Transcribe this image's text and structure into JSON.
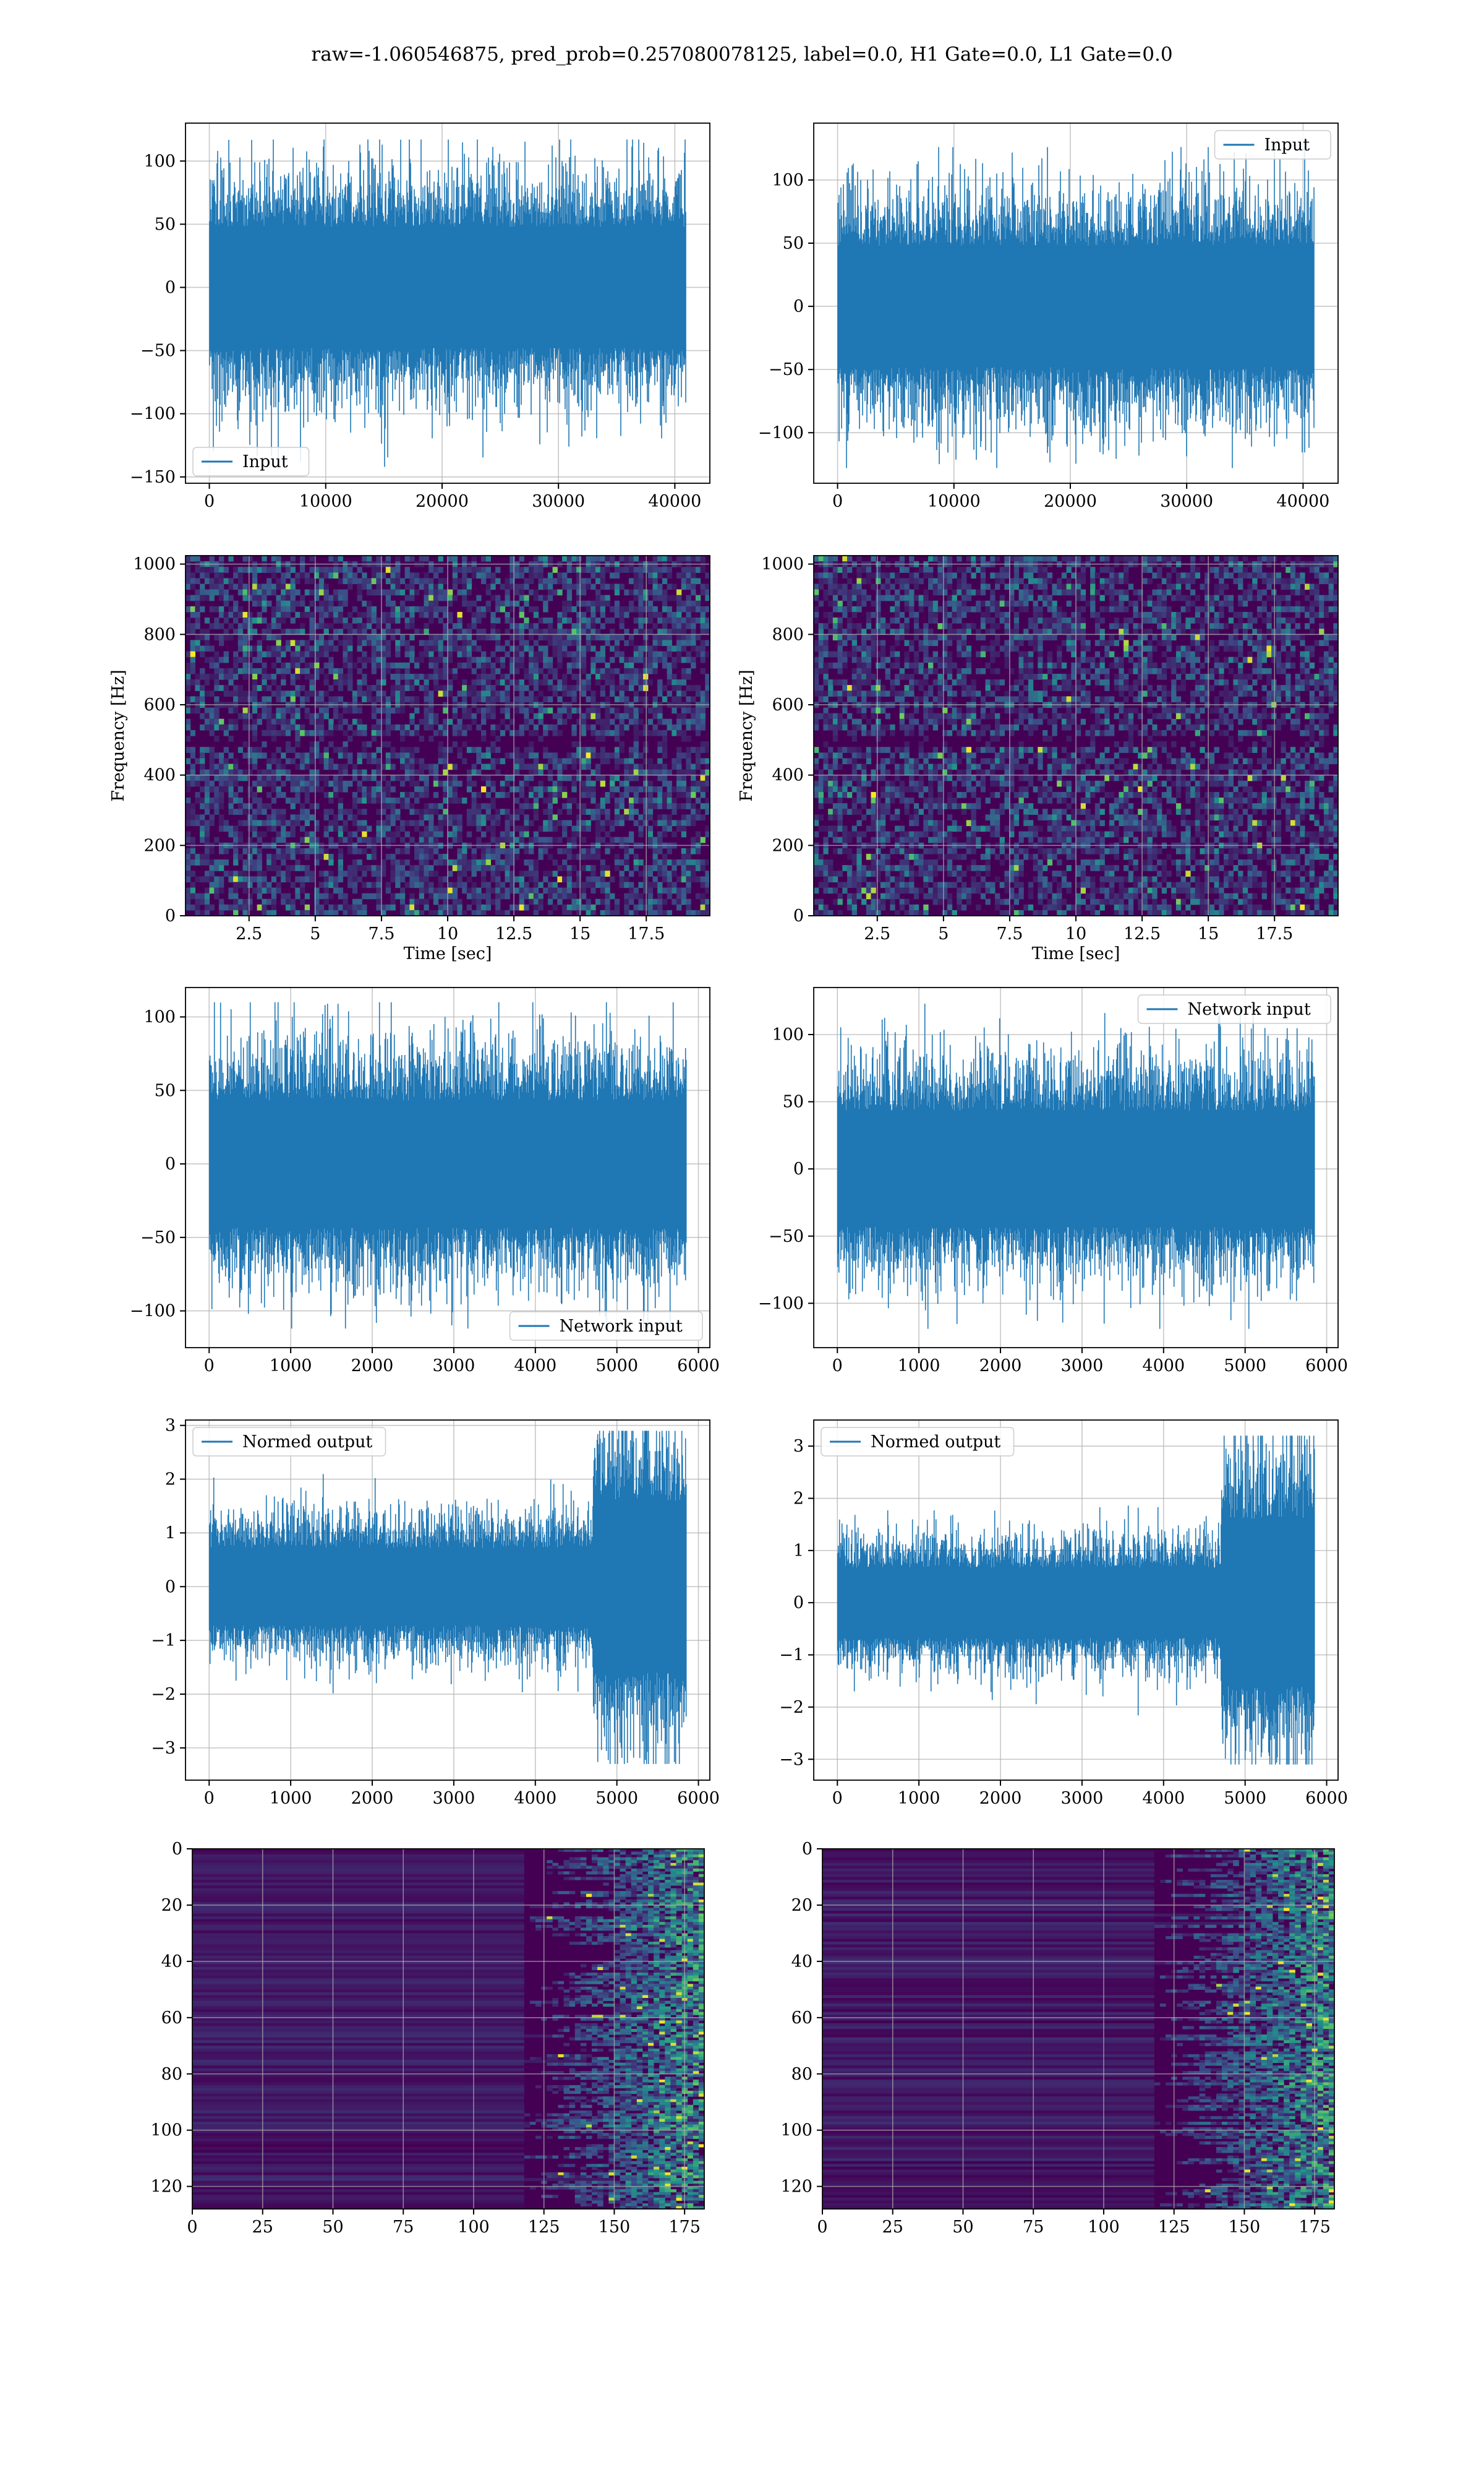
{
  "figure": {
    "suptitle": "raw=-1.060546875, pred_prob=0.257080078125, label=0.0, H1 Gate=0.0, L1 Gate=0.0"
  },
  "colors": {
    "line": "#1f77b4",
    "grid": "#b0b0b0",
    "viridis_dark": "#440154",
    "viridis_mid": "#3b528b",
    "viridis_green": "#21918c",
    "viridis_light": "#5ec962",
    "viridis_yellow": "#fde725"
  },
  "chart_data": [
    {
      "id": "h1-input",
      "type": "line",
      "grid": true,
      "legend": "lower-left",
      "series": [
        {
          "name": "Input",
          "n_samples": 40960,
          "approx_std": 30,
          "approx_extent": [
            -142,
            117
          ]
        }
      ],
      "xlabel": "",
      "ylabel": "",
      "xlim": [
        -2048,
        43008
      ],
      "ylim": [
        -155,
        130
      ],
      "xticks": [
        0,
        10000,
        20000,
        30000,
        40000
      ],
      "yticks": [
        -150,
        -100,
        -50,
        0,
        50,
        100
      ]
    },
    {
      "id": "l1-input",
      "type": "line",
      "grid": true,
      "legend": "upper-right",
      "series": [
        {
          "name": "Input",
          "n_samples": 40960,
          "approx_std": 30,
          "approx_extent": [
            -128,
            126
          ]
        }
      ],
      "xlabel": "",
      "ylabel": "",
      "xlim": [
        -2048,
        43008
      ],
      "ylim": [
        -140,
        145
      ],
      "xticks": [
        0,
        10000,
        20000,
        30000,
        40000
      ],
      "yticks": [
        -100,
        -50,
        0,
        50,
        100
      ]
    },
    {
      "id": "h1-spectrogram",
      "type": "heatmap",
      "grid": true,
      "colormap": "viridis",
      "xlabel": "Time [sec]",
      "ylabel": "Frequency [Hz]",
      "xlim": [
        0.1,
        19.9
      ],
      "ylim": [
        0,
        1024
      ],
      "xticks": [
        2.5,
        5.0,
        7.5,
        10.0,
        12.5,
        15.0,
        17.5
      ],
      "yticks": [
        0,
        200,
        400,
        600,
        800,
        1000
      ]
    },
    {
      "id": "l1-spectrogram",
      "type": "heatmap",
      "grid": true,
      "colormap": "viridis",
      "xlabel": "Time [sec]",
      "ylabel": "Frequency [Hz]",
      "xlim": [
        0.1,
        19.9
      ],
      "ylim": [
        0,
        1024
      ],
      "xticks": [
        2.5,
        5.0,
        7.5,
        10.0,
        12.5,
        15.0,
        17.5
      ],
      "yticks": [
        0,
        200,
        400,
        600,
        800,
        1000
      ]
    },
    {
      "id": "h1-network-input",
      "type": "line",
      "grid": true,
      "legend": "lower-right",
      "series": [
        {
          "name": "Network input",
          "n_samples": 5850,
          "approx_std": 27,
          "approx_extent": [
            -112,
            110
          ]
        }
      ],
      "xlabel": "",
      "ylabel": "",
      "xlim": [
        -290,
        6140
      ],
      "ylim": [
        -125,
        120
      ],
      "xticks": [
        0,
        1000,
        2000,
        3000,
        4000,
        5000,
        6000
      ],
      "yticks": [
        -100,
        -50,
        0,
        50,
        100
      ]
    },
    {
      "id": "l1-network-input",
      "type": "line",
      "grid": true,
      "legend": "upper-right",
      "series": [
        {
          "name": "Network input",
          "n_samples": 5850,
          "approx_std": 27,
          "approx_extent": [
            -119,
            123
          ]
        }
      ],
      "xlabel": "",
      "ylabel": "",
      "xlim": [
        -290,
        6140
      ],
      "ylim": [
        -133,
        135
      ],
      "xticks": [
        0,
        1000,
        2000,
        3000,
        4000,
        5000,
        6000
      ],
      "yticks": [
        -100,
        -50,
        0,
        50,
        100
      ]
    },
    {
      "id": "h1-normed-output",
      "type": "line",
      "grid": true,
      "legend": "upper-left",
      "series": [
        {
          "name": "Normed output",
          "n_samples": 5850,
          "approx_std": 0.45,
          "loud_from": 4700,
          "loud_std": 1.0,
          "approx_extent": [
            -3.3,
            2.9
          ]
        }
      ],
      "xlabel": "",
      "ylabel": "",
      "xlim": [
        -290,
        6140
      ],
      "ylim": [
        -3.6,
        3.1
      ],
      "xticks": [
        0,
        1000,
        2000,
        3000,
        4000,
        5000,
        6000
      ],
      "yticks": [
        -3,
        -2,
        -1,
        0,
        1,
        2,
        3
      ]
    },
    {
      "id": "l1-normed-output",
      "type": "line",
      "grid": true,
      "legend": "upper-left",
      "series": [
        {
          "name": "Normed output",
          "n_samples": 5850,
          "approx_std": 0.42,
          "loud_from": 4700,
          "loud_std": 1.0,
          "approx_extent": [
            -3.1,
            3.2
          ]
        }
      ],
      "xlabel": "",
      "ylabel": "",
      "xlim": [
        -290,
        6140
      ],
      "ylim": [
        -3.4,
        3.5
      ],
      "xticks": [
        0,
        1000,
        2000,
        3000,
        4000,
        5000,
        6000
      ],
      "yticks": [
        -3,
        -2,
        -1,
        0,
        1,
        2,
        3
      ]
    },
    {
      "id": "h1-feature-map",
      "type": "heatmap",
      "grid": true,
      "colormap": "viridis",
      "rows": 128,
      "cols": 182,
      "y_inverted": true,
      "activity_onset_col": 118,
      "xlabel": "",
      "ylabel": "",
      "xlim": [
        0,
        182
      ],
      "ylim": [
        128,
        0
      ],
      "xticks": [
        0,
        25,
        50,
        75,
        100,
        125,
        150,
        175
      ],
      "yticks": [
        0,
        20,
        40,
        60,
        80,
        100,
        120
      ]
    },
    {
      "id": "l1-feature-map",
      "type": "heatmap",
      "grid": true,
      "colormap": "viridis",
      "rows": 128,
      "cols": 182,
      "y_inverted": true,
      "activity_onset_col": 118,
      "xlabel": "",
      "ylabel": "",
      "xlim": [
        0,
        182
      ],
      "ylim": [
        128,
        0
      ],
      "xticks": [
        0,
        25,
        50,
        75,
        100,
        125,
        150,
        175
      ],
      "yticks": [
        0,
        20,
        40,
        60,
        80,
        100,
        120
      ]
    }
  ]
}
